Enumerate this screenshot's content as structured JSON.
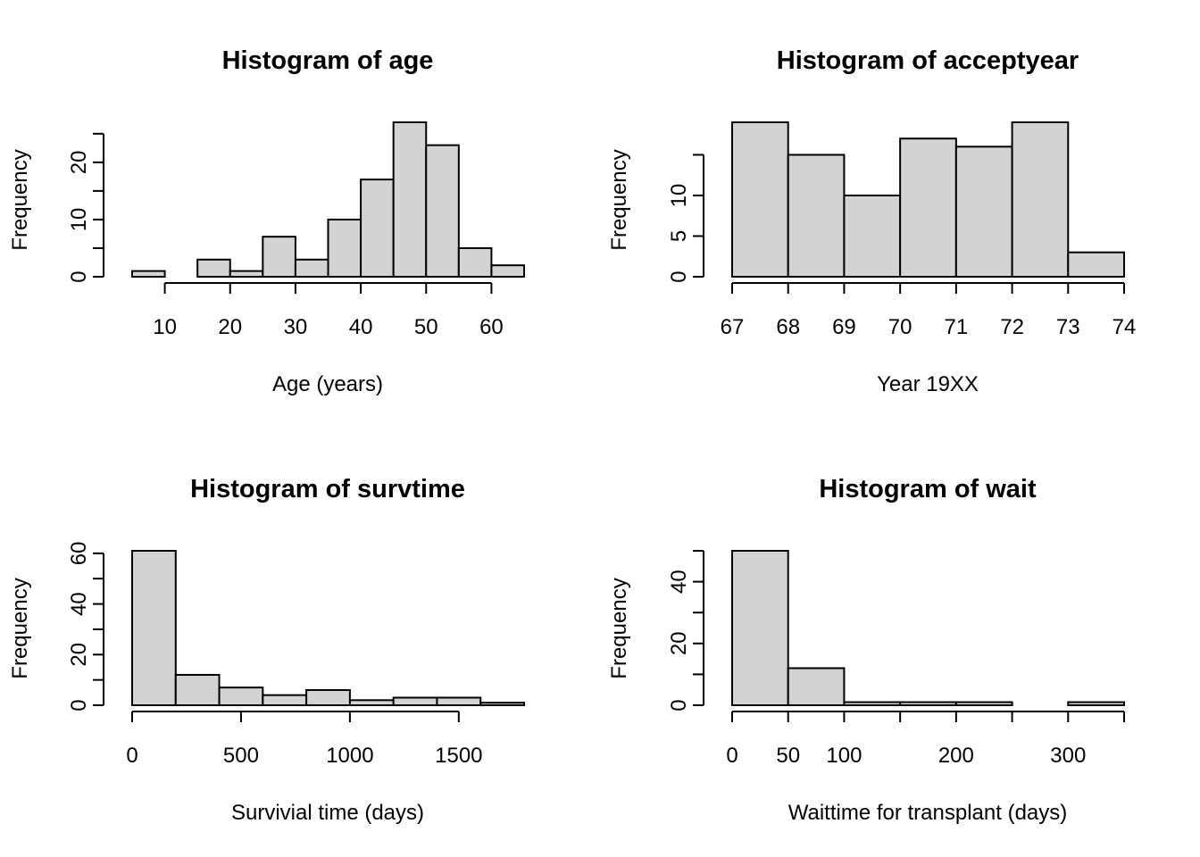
{
  "chart_data": [
    {
      "type": "bar",
      "title": "Histogram of age",
      "xlabel": "Age (years)",
      "ylabel": "Frequency",
      "breaks": [
        5,
        10,
        15,
        20,
        25,
        30,
        35,
        40,
        45,
        50,
        55,
        60,
        65
      ],
      "values": [
        1,
        0,
        3,
        1,
        7,
        3,
        10,
        17,
        27,
        23,
        5,
        2
      ],
      "xticks": [
        10,
        20,
        30,
        40,
        50,
        60
      ],
      "yticks": [
        0,
        5,
        10,
        15,
        20,
        25
      ],
      "ytick_labels": [
        "0",
        "",
        "10",
        "",
        "20",
        ""
      ],
      "xlim": [
        5,
        65
      ],
      "ylim": [
        0,
        27
      ]
    },
    {
      "type": "bar",
      "title": "Histogram of acceptyear",
      "xlabel": "Year 19XX",
      "ylabel": "Frequency",
      "breaks": [
        67,
        68,
        69,
        70,
        71,
        72,
        73,
        74
      ],
      "values": [
        19,
        15,
        10,
        17,
        16,
        19,
        3
      ],
      "xticks": [
        67,
        68,
        69,
        70,
        71,
        72,
        73,
        74
      ],
      "yticks": [
        0,
        5,
        10,
        15
      ],
      "ytick_labels": [
        "0",
        "5",
        "10",
        ""
      ],
      "xlim": [
        67,
        74
      ],
      "ylim": [
        0,
        19
      ]
    },
    {
      "type": "bar",
      "title": "Histogram of survtime",
      "xlabel": "Survivial time (days)",
      "ylabel": "Frequency",
      "breaks": [
        0,
        200,
        400,
        600,
        800,
        1000,
        1200,
        1400,
        1600,
        1800
      ],
      "values": [
        61,
        12,
        7,
        4,
        6,
        2,
        3,
        3,
        1
      ],
      "xticks": [
        0,
        500,
        1000,
        1500
      ],
      "yticks": [
        0,
        10,
        20,
        30,
        40,
        50,
        60
      ],
      "ytick_labels": [
        "0",
        "",
        "20",
        "",
        "40",
        "",
        "60"
      ],
      "xlim": [
        0,
        1800
      ],
      "ylim": [
        0,
        61
      ]
    },
    {
      "type": "bar",
      "title": "Histogram of wait",
      "xlabel": "Waittime for transplant (days)",
      "ylabel": "Frequency",
      "breaks": [
        0,
        50,
        100,
        150,
        200,
        250,
        300,
        350
      ],
      "values": [
        50,
        12,
        1,
        1,
        1,
        0,
        1
      ],
      "xticks": [
        0,
        50,
        100,
        150,
        200,
        250,
        300,
        350
      ],
      "xtick_labels": [
        "0",
        "50",
        "100",
        "",
        "200",
        "",
        "300",
        ""
      ],
      "yticks": [
        0,
        10,
        20,
        30,
        40,
        50
      ],
      "ytick_labels": [
        "0",
        "",
        "20",
        "",
        "40",
        ""
      ],
      "xlim": [
        0,
        350
      ],
      "ylim": [
        0,
        50
      ]
    }
  ]
}
